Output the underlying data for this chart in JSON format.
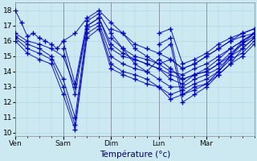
{
  "xlabel": "Température (°c)",
  "bg_color": "#cce8f0",
  "line_color": "#0000cc",
  "marker_color": "#0000cc",
  "ylim": [
    9.8,
    18.5
  ],
  "yticks": [
    10,
    11,
    12,
    13,
    14,
    15,
    16,
    17,
    18
  ],
  "day_labels": [
    "Ven",
    "Sam",
    "Dim",
    "Lun",
    "Mar"
  ],
  "day_positions": [
    0,
    24,
    48,
    72,
    96
  ],
  "total_hours": 120,
  "series": [
    {
      "start_hour": 0,
      "points": [
        [
          0,
          18.0
        ],
        [
          3,
          17.2
        ],
        [
          6,
          16.3
        ],
        [
          9,
          16.5
        ],
        [
          12,
          16.2
        ],
        [
          15,
          16.0
        ],
        [
          18,
          15.8
        ],
        [
          21,
          15.5
        ],
        [
          24,
          16.0
        ],
        [
          30,
          16.5
        ],
        [
          36,
          17.5
        ],
        [
          42,
          18.0
        ],
        [
          48,
          17.2
        ],
        [
          54,
          16.5
        ],
        [
          60,
          15.5
        ],
        [
          66,
          15.0
        ],
        [
          72,
          14.5
        ],
        [
          78,
          14.8
        ],
        [
          84,
          14.2
        ],
        [
          90,
          14.5
        ],
        [
          96,
          15.0
        ],
        [
          102,
          15.5
        ],
        [
          108,
          16.0
        ],
        [
          114,
          16.3
        ],
        [
          120,
          16.5
        ]
      ]
    },
    {
      "start_hour": 0,
      "points": [
        [
          0,
          16.5
        ],
        [
          6,
          16.0
        ],
        [
          12,
          15.8
        ],
        [
          18,
          15.5
        ],
        [
          24,
          15.0
        ],
        [
          30,
          13.0
        ],
        [
          36,
          17.0
        ],
        [
          42,
          17.5
        ],
        [
          48,
          15.5
        ],
        [
          54,
          15.0
        ],
        [
          60,
          14.8
        ],
        [
          66,
          14.5
        ],
        [
          72,
          14.2
        ],
        [
          78,
          13.8
        ],
        [
          84,
          13.5
        ],
        [
          90,
          13.8
        ],
        [
          96,
          14.0
        ],
        [
          102,
          14.5
        ],
        [
          108,
          15.0
        ],
        [
          114,
          15.8
        ],
        [
          120,
          16.5
        ]
      ]
    },
    {
      "start_hour": 0,
      "points": [
        [
          0,
          16.3
        ],
        [
          6,
          15.8
        ],
        [
          12,
          15.5
        ],
        [
          18,
          15.0
        ],
        [
          24,
          13.5
        ],
        [
          30,
          11.0
        ],
        [
          36,
          16.8
        ],
        [
          42,
          17.2
        ],
        [
          48,
          15.0
        ],
        [
          54,
          14.5
        ],
        [
          60,
          14.2
        ],
        [
          66,
          14.0
        ],
        [
          72,
          13.5
        ],
        [
          78,
          13.0
        ],
        [
          84,
          13.0
        ],
        [
          90,
          13.5
        ],
        [
          96,
          13.8
        ],
        [
          102,
          14.2
        ],
        [
          108,
          15.0
        ],
        [
          114,
          15.5
        ],
        [
          120,
          16.2
        ]
      ]
    },
    {
      "start_hour": 0,
      "points": [
        [
          0,
          16.2
        ],
        [
          6,
          15.5
        ],
        [
          12,
          15.2
        ],
        [
          18,
          14.8
        ],
        [
          24,
          13.0
        ],
        [
          30,
          10.5
        ],
        [
          36,
          16.5
        ],
        [
          42,
          17.0
        ],
        [
          48,
          14.5
        ],
        [
          54,
          14.0
        ],
        [
          60,
          13.8
        ],
        [
          66,
          13.5
        ],
        [
          72,
          13.0
        ],
        [
          78,
          12.5
        ],
        [
          84,
          12.8
        ],
        [
          90,
          13.2
        ],
        [
          96,
          13.5
        ],
        [
          102,
          14.0
        ],
        [
          108,
          14.8
        ],
        [
          114,
          15.2
        ],
        [
          120,
          16.0
        ]
      ]
    },
    {
      "start_hour": 0,
      "points": [
        [
          0,
          16.0
        ],
        [
          6,
          15.2
        ],
        [
          12,
          14.8
        ],
        [
          18,
          14.5
        ],
        [
          24,
          12.5
        ],
        [
          30,
          10.2
        ],
        [
          36,
          16.2
        ],
        [
          42,
          16.8
        ],
        [
          48,
          14.2
        ],
        [
          54,
          13.8
        ],
        [
          60,
          13.5
        ],
        [
          66,
          13.2
        ],
        [
          72,
          13.0
        ],
        [
          78,
          12.2
        ],
        [
          84,
          12.5
        ],
        [
          90,
          13.0
        ],
        [
          96,
          13.2
        ],
        [
          102,
          13.8
        ],
        [
          108,
          14.5
        ],
        [
          114,
          15.0
        ],
        [
          120,
          15.8
        ]
      ]
    },
    {
      "start_hour": 24,
      "points": [
        [
          24,
          16.0
        ],
        [
          30,
          13.2
        ],
        [
          36,
          17.3
        ],
        [
          42,
          17.8
        ],
        [
          48,
          16.5
        ],
        [
          54,
          15.5
        ],
        [
          60,
          15.0
        ],
        [
          66,
          14.8
        ],
        [
          72,
          14.5
        ],
        [
          78,
          14.0
        ],
        [
          84,
          13.8
        ],
        [
          90,
          14.2
        ],
        [
          96,
          14.5
        ],
        [
          102,
          15.0
        ],
        [
          108,
          15.5
        ],
        [
          114,
          16.0
        ],
        [
          120,
          16.5
        ]
      ]
    },
    {
      "start_hour": 24,
      "points": [
        [
          24,
          15.5
        ],
        [
          30,
          12.5
        ],
        [
          36,
          17.0
        ],
        [
          42,
          17.5
        ],
        [
          48,
          15.8
        ],
        [
          54,
          15.2
        ],
        [
          60,
          14.8
        ],
        [
          66,
          14.5
        ],
        [
          72,
          14.2
        ],
        [
          78,
          13.5
        ],
        [
          84,
          13.2
        ],
        [
          90,
          13.8
        ],
        [
          96,
          14.0
        ],
        [
          102,
          14.5
        ],
        [
          108,
          15.2
        ],
        [
          114,
          15.8
        ],
        [
          120,
          16.3
        ]
      ]
    },
    {
      "start_hour": 48,
      "points": [
        [
          48,
          16.8
        ],
        [
          54,
          16.5
        ],
        [
          60,
          15.8
        ],
        [
          66,
          15.5
        ],
        [
          72,
          15.2
        ],
        [
          78,
          14.8
        ],
        [
          84,
          14.2
        ],
        [
          90,
          14.5
        ],
        [
          96,
          15.0
        ],
        [
          102,
          15.5
        ],
        [
          108,
          16.0
        ],
        [
          114,
          16.5
        ],
        [
          120,
          16.8
        ]
      ]
    },
    {
      "start_hour": 48,
      "points": [
        [
          48,
          16.2
        ],
        [
          54,
          15.5
        ],
        [
          60,
          14.5
        ],
        [
          66,
          14.0
        ],
        [
          72,
          14.8
        ],
        [
          78,
          14.2
        ],
        [
          84,
          13.5
        ],
        [
          90,
          13.8
        ],
        [
          96,
          14.2
        ],
        [
          102,
          14.8
        ],
        [
          108,
          15.5
        ],
        [
          114,
          16.0
        ],
        [
          120,
          16.5
        ]
      ]
    },
    {
      "start_hour": 72,
      "points": [
        [
          72,
          16.5
        ],
        [
          78,
          16.8
        ],
        [
          84,
          14.5
        ],
        [
          90,
          14.8
        ],
        [
          96,
          15.2
        ],
        [
          102,
          15.8
        ],
        [
          108,
          16.2
        ],
        [
          114,
          16.5
        ],
        [
          120,
          16.8
        ]
      ]
    },
    {
      "start_hour": 72,
      "points": [
        [
          72,
          15.8
        ],
        [
          78,
          16.2
        ],
        [
          84,
          12.5
        ],
        [
          90,
          12.8
        ],
        [
          96,
          13.2
        ],
        [
          102,
          14.0
        ],
        [
          108,
          15.0
        ],
        [
          114,
          16.0
        ],
        [
          120,
          16.5
        ]
      ]
    },
    {
      "start_hour": 72,
      "points": [
        [
          72,
          15.2
        ],
        [
          78,
          15.8
        ],
        [
          84,
          12.0
        ],
        [
          90,
          12.5
        ],
        [
          96,
          13.0
        ],
        [
          102,
          13.8
        ],
        [
          108,
          14.5
        ],
        [
          114,
          15.5
        ],
        [
          120,
          16.2
        ]
      ]
    }
  ]
}
